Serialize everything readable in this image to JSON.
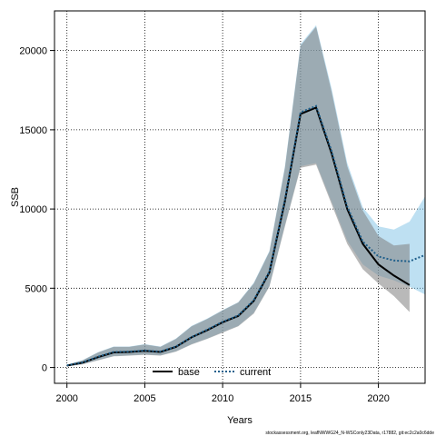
{
  "chart_data": {
    "type": "line",
    "xlabel": "Years",
    "ylabel": "SSB",
    "xlim": [
      1999.2,
      2023.0
    ],
    "ylim": [
      -1000,
      22500
    ],
    "xticks": [
      2000,
      2005,
      2010,
      2015,
      2020
    ],
    "yticks": [
      0,
      5000,
      10000,
      15000,
      20000
    ],
    "grid": true,
    "legend_position": "bottom-center",
    "series": [
      {
        "name": "base",
        "style": "solid",
        "color": "#000000",
        "band_color": "#808080",
        "x": [
          2000,
          2001,
          2002,
          2003,
          2004,
          2005,
          2006,
          2007,
          2008,
          2009,
          2010,
          2011,
          2012,
          2013,
          2014,
          2015,
          2016,
          2017,
          2018,
          2019,
          2020,
          2021,
          2022
        ],
        "y": [
          120,
          300,
          650,
          950,
          980,
          1050,
          980,
          1300,
          1900,
          2350,
          2850,
          3250,
          4200,
          6000,
          10500,
          16000,
          16400,
          13500,
          10000,
          7800,
          6500,
          5800,
          5200
        ],
        "lower": [
          70,
          200,
          450,
          700,
          750,
          800,
          750,
          1000,
          1450,
          1800,
          2200,
          2600,
          3400,
          5100,
          8900,
          12600,
          12800,
          10300,
          7800,
          6200,
          5300,
          4500,
          3500
        ],
        "upper": [
          170,
          450,
          950,
          1300,
          1300,
          1450,
          1300,
          1800,
          2600,
          3050,
          3600,
          4100,
          5300,
          7300,
          12600,
          20300,
          21500,
          17400,
          12700,
          9900,
          8300,
          7700,
          7800
        ]
      },
      {
        "name": "current",
        "style": "dotted",
        "color": "#1f5f8b",
        "band_color": "#7ec2e6",
        "x": [
          2000,
          2001,
          2002,
          2003,
          2004,
          2005,
          2006,
          2007,
          2008,
          2009,
          2010,
          2011,
          2012,
          2013,
          2014,
          2015,
          2016,
          2017,
          2018,
          2019,
          2020,
          2021,
          2022,
          2023
        ],
        "y": [
          130,
          320,
          680,
          980,
          1000,
          1070,
          1000,
          1320,
          1920,
          2380,
          2880,
          3280,
          4250,
          6050,
          10600,
          16100,
          16500,
          13650,
          10150,
          7950,
          7000,
          6750,
          6700,
          7100
        ],
        "lower": [
          80,
          220,
          480,
          720,
          760,
          820,
          760,
          1020,
          1470,
          1820,
          2230,
          2630,
          3450,
          5150,
          9000,
          12700,
          12900,
          10450,
          8000,
          6500,
          5800,
          5500,
          5100,
          4600
        ],
        "upper": [
          180,
          460,
          960,
          1320,
          1320,
          1470,
          1320,
          1820,
          2620,
          3080,
          3620,
          4120,
          5350,
          7350,
          12700,
          20400,
          21600,
          17600,
          12900,
          10100,
          8900,
          8700,
          9200,
          10800
        ]
      }
    ]
  },
  "legend": {
    "items": [
      {
        "label": "base"
      },
      {
        "label": "current"
      }
    ]
  },
  "footnote": "stockassessment.org, leafNWWG24_N-WSConly23Data, r17882, git:ec2c2a0c6dde"
}
